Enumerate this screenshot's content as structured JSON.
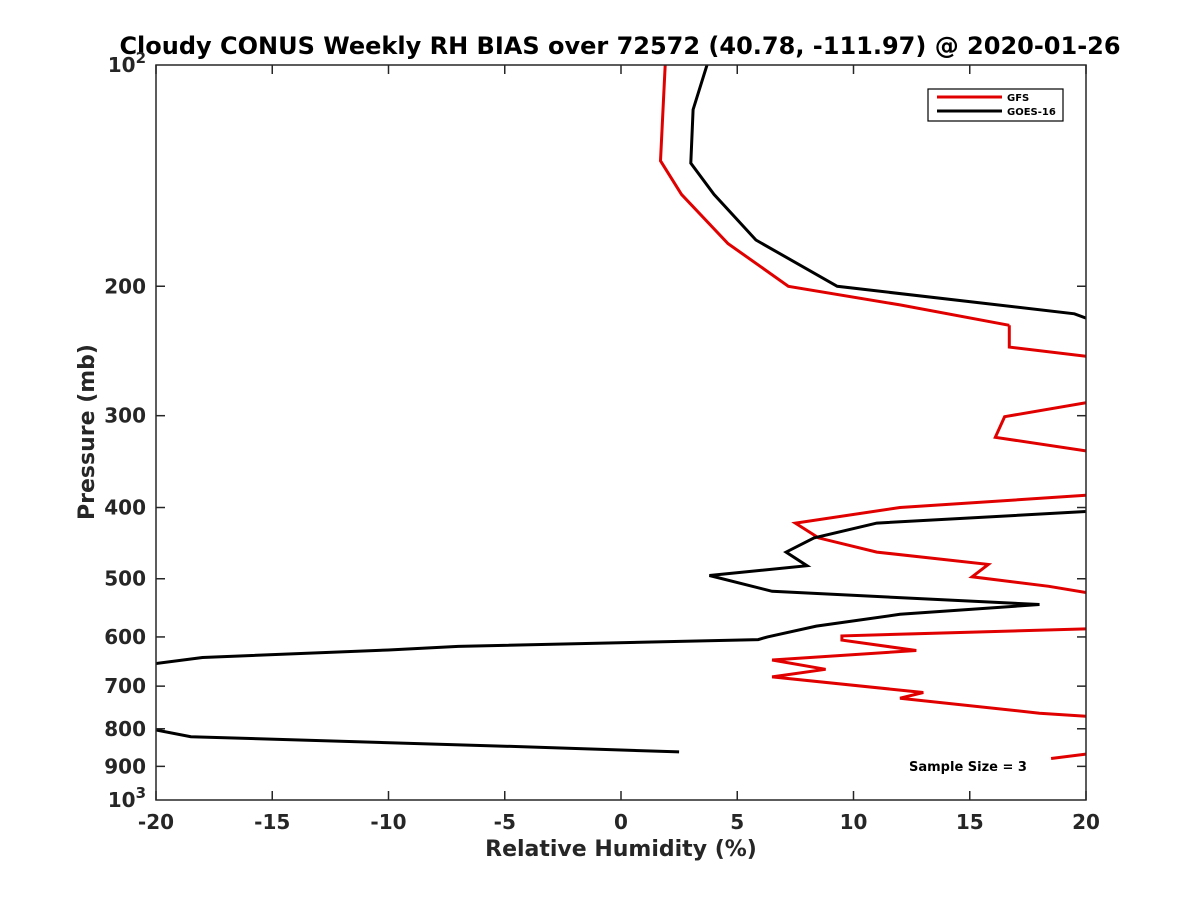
{
  "chart_data": {
    "type": "line",
    "title": "Cloudy CONUS Weekly RH BIAS over 72572 (40.78, -111.97) @ 2020-01-26",
    "xlabel": "Relative Humidity (%)",
    "ylabel": "Pressure (mb)",
    "xlim": [
      -20,
      20
    ],
    "ylim": [
      100,
      1000
    ],
    "yscale": "log",
    "y_reversed": true,
    "grid": false,
    "legend_position": "top-right",
    "annotation": "Sample Size = 3",
    "x_ticks": [
      "-20",
      "-15",
      "-10",
      "-5",
      "0",
      "5",
      "10",
      "15",
      "20"
    ],
    "y_ticks": [
      {
        "value": 200,
        "label": "200"
      },
      {
        "value": 300,
        "label": "300"
      },
      {
        "value": 400,
        "label": "400"
      },
      {
        "value": 500,
        "label": "500"
      },
      {
        "value": 600,
        "label": "600"
      },
      {
        "value": 700,
        "label": "700"
      },
      {
        "value": 800,
        "label": "800"
      },
      {
        "value": 900,
        "label": "900"
      }
    ],
    "y_end_ticks": {
      "top": {
        "value": 100,
        "base": "10",
        "exp": "2"
      },
      "bottom": {
        "value": 1000,
        "base": "10",
        "exp": "3"
      }
    },
    "series": [
      {
        "name": "GFS",
        "color": "#e00000",
        "segments": [
          [
            [
              1.9,
              100
            ],
            [
              1.7,
              135
            ],
            [
              2.6,
              150
            ],
            [
              4.6,
              175
            ],
            [
              7.2,
              200
            ],
            [
              12,
              212
            ],
            [
              16.7,
              226
            ]
          ],
          [
            [
              16.7,
              226
            ],
            [
              16.7,
              242
            ],
            [
              20,
              249
            ]
          ],
          [
            [
              20,
              288
            ],
            [
              16.5,
              301
            ],
            [
              16.1,
              321
            ],
            [
              20,
              335
            ]
          ],
          [
            [
              20,
              385
            ],
            [
              12,
              400
            ],
            [
              7.5,
              420
            ],
            [
              8.5,
              440
            ],
            [
              11,
              460
            ],
            [
              15.8,
              478
            ],
            [
              15.1,
              497
            ],
            [
              18.4,
              512
            ],
            [
              20,
              522
            ]
          ],
          [
            [
              20,
              585
            ],
            [
              9.5,
              598
            ],
            [
              9.5,
              606
            ],
            [
              12.7,
              626
            ],
            [
              6.5,
              645
            ],
            [
              8.8,
              664
            ],
            [
              6.5,
              680
            ],
            [
              13,
              714
            ],
            [
              12,
              727
            ],
            [
              18,
              762
            ],
            [
              20,
              769
            ]
          ],
          [
            [
              18.5,
              878
            ],
            [
              20,
              866
            ]
          ]
        ]
      },
      {
        "name": "GOES-16",
        "color": "#000000",
        "segments": [
          [
            [
              3.7,
              100
            ],
            [
              3.1,
              115
            ],
            [
              3,
              136
            ],
            [
              4,
              150
            ],
            [
              5.8,
              173
            ],
            [
              9.3,
              200
            ],
            [
              19.5,
              218
            ],
            [
              20,
              221
            ]
          ],
          [
            [
              20,
              405
            ],
            [
              11,
              420
            ],
            [
              8.3,
              440
            ],
            [
              7.1,
              460
            ],
            [
              8,
              480
            ],
            [
              3.8,
              495
            ],
            [
              6.5,
              520
            ],
            [
              18,
              542
            ],
            [
              12,
              559
            ],
            [
              8.4,
              580
            ],
            [
              6.3,
              600
            ],
            [
              5.9,
              605
            ],
            [
              -7,
              618
            ],
            [
              -10,
              625
            ],
            [
              -18,
              640
            ],
            [
              -20,
              652
            ]
          ],
          [
            [
              -20,
              803
            ],
            [
              -18.5,
              820
            ],
            [
              -5,
              845
            ],
            [
              2.5,
              860
            ]
          ]
        ]
      }
    ]
  }
}
